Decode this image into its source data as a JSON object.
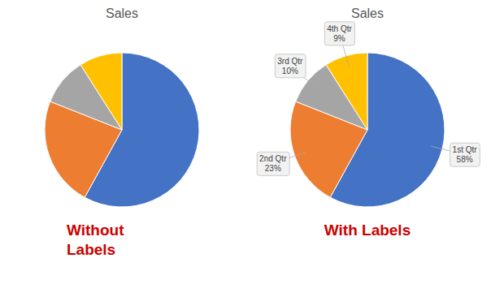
{
  "chart_data": [
    {
      "type": "pie",
      "title": "Sales",
      "subtitle": "Without\nLabels",
      "values": [
        58,
        23,
        10,
        9
      ],
      "colors": [
        "#4472C4",
        "#ED7D31",
        "#A5A5A5",
        "#FFC000"
      ]
    },
    {
      "type": "pie",
      "title": "Sales",
      "subtitle": "With Labels",
      "categories": [
        "1st Qtr",
        "2nd Qtr",
        "3rd Qtr",
        "4th Qtr"
      ],
      "values": [
        58,
        23,
        10,
        9
      ],
      "value_labels": [
        "58%",
        "23%",
        "10%",
        "9%"
      ],
      "colors": [
        "#4472C4",
        "#ED7D31",
        "#A5A5A5",
        "#FFC000"
      ],
      "data_labels": true
    }
  ]
}
